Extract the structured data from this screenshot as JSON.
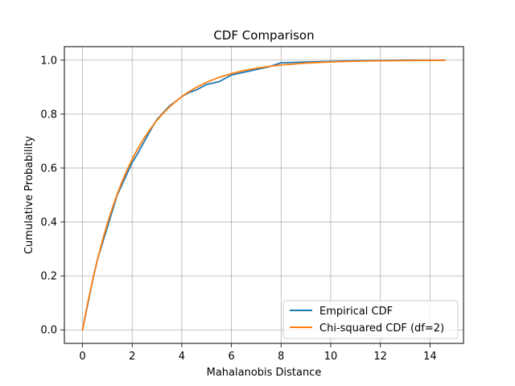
{
  "chart_data": {
    "type": "line",
    "title": "CDF Comparison",
    "xlabel": "Mahalanobis Distance",
    "ylabel": "Cumulative Probability",
    "xlim": [
      -0.73,
      15.35
    ],
    "ylim": [
      -0.05,
      1.05
    ],
    "xticks": [
      0,
      2,
      4,
      6,
      8,
      10,
      12,
      14
    ],
    "xtick_labels": [
      "0",
      "2",
      "4",
      "6",
      "8",
      "10",
      "12",
      "14"
    ],
    "yticks": [
      0.0,
      0.2,
      0.4,
      0.6,
      0.8,
      1.0
    ],
    "ytick_labels": [
      "0.0",
      "0.2",
      "0.4",
      "0.6",
      "0.8",
      "1.0"
    ],
    "grid": true,
    "legend_position": "lower-right",
    "series": [
      {
        "name": "Empirical CDF",
        "color": "#1f77b4",
        "x": [
          0,
          0.2,
          0.4,
          0.6,
          0.8,
          1.0,
          1.2,
          1.4,
          1.6,
          1.8,
          2.0,
          2.2,
          2.5,
          2.8,
          3.0,
          3.2,
          3.5,
          3.8,
          4.0,
          4.3,
          4.6,
          5.0,
          5.5,
          6.0,
          6.5,
          7.0,
          7.5,
          8.0,
          9.0,
          10.0,
          11.0,
          12.0,
          13.0,
          14.0,
          14.6
        ],
        "y": [
          0,
          0.09,
          0.18,
          0.26,
          0.32,
          0.38,
          0.44,
          0.5,
          0.54,
          0.58,
          0.62,
          0.65,
          0.7,
          0.75,
          0.78,
          0.8,
          0.83,
          0.85,
          0.865,
          0.88,
          0.89,
          0.91,
          0.92,
          0.945,
          0.955,
          0.965,
          0.975,
          0.99,
          0.993,
          0.995,
          0.998,
          0.999,
          1.0,
          1.0,
          1.0
        ]
      },
      {
        "name": "Chi-squared CDF (df=2)",
        "color": "#ff7f0e",
        "x": [
          0,
          0.2,
          0.4,
          0.6,
          0.8,
          1.0,
          1.2,
          1.4,
          1.6,
          1.8,
          2.0,
          2.2,
          2.5,
          2.8,
          3.0,
          3.2,
          3.5,
          3.8,
          4.0,
          4.3,
          4.6,
          5.0,
          5.5,
          6.0,
          6.5,
          7.0,
          7.5,
          8.0,
          9.0,
          10.0,
          11.0,
          12.0,
          13.0,
          14.0,
          14.6
        ],
        "y": [
          0,
          0.0952,
          0.1813,
          0.2592,
          0.3297,
          0.3935,
          0.4512,
          0.5034,
          0.5507,
          0.5934,
          0.6321,
          0.6671,
          0.7135,
          0.7534,
          0.7769,
          0.7981,
          0.8262,
          0.8504,
          0.8647,
          0.8835,
          0.8997,
          0.9179,
          0.9361,
          0.9502,
          0.9612,
          0.9698,
          0.9765,
          0.9817,
          0.9889,
          0.9933,
          0.9959,
          0.9975,
          0.9985,
          0.9991,
          0.9993
        ]
      }
    ]
  }
}
